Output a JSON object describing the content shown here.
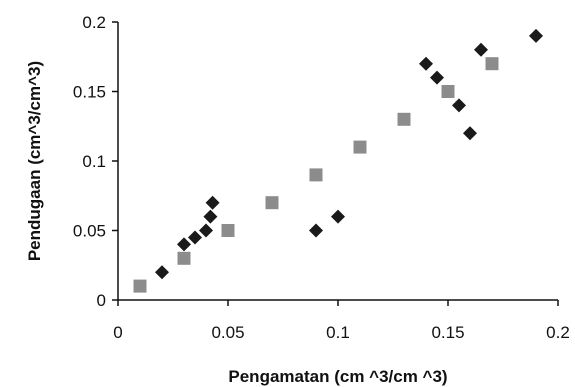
{
  "chart_data": {
    "type": "scatter",
    "title": "",
    "xlabel": "Pengamatan (cm ^3/cm ^3)",
    "ylabel": "Pendugaan  (cm^3/cm^3)",
    "xlim": [
      0,
      0.2
    ],
    "ylim": [
      0,
      0.2
    ],
    "x_ticks": [
      "0",
      "0.05",
      "0.1",
      "0.15",
      "0.2"
    ],
    "y_ticks": [
      "0",
      "0.05",
      "0.1",
      "0.15",
      "0.2"
    ],
    "grid": false,
    "legend": "none",
    "series": [
      {
        "marker": "diamond",
        "color": "#1a1a1a",
        "points": [
          [
            0.02,
            0.02
          ],
          [
            0.03,
            0.04
          ],
          [
            0.035,
            0.045
          ],
          [
            0.04,
            0.05
          ],
          [
            0.042,
            0.06
          ],
          [
            0.043,
            0.07
          ],
          [
            0.09,
            0.05
          ],
          [
            0.1,
            0.06
          ],
          [
            0.14,
            0.17
          ],
          [
            0.145,
            0.16
          ],
          [
            0.155,
            0.14
          ],
          [
            0.16,
            0.12
          ],
          [
            0.165,
            0.18
          ],
          [
            0.19,
            0.19
          ]
        ]
      },
      {
        "marker": "square",
        "color": "#8c8c8c",
        "points": [
          [
            0.01,
            0.01
          ],
          [
            0.03,
            0.03
          ],
          [
            0.05,
            0.05
          ],
          [
            0.07,
            0.07
          ],
          [
            0.09,
            0.09
          ],
          [
            0.11,
            0.11
          ],
          [
            0.13,
            0.13
          ],
          [
            0.15,
            0.15
          ],
          [
            0.17,
            0.17
          ]
        ]
      }
    ]
  }
}
